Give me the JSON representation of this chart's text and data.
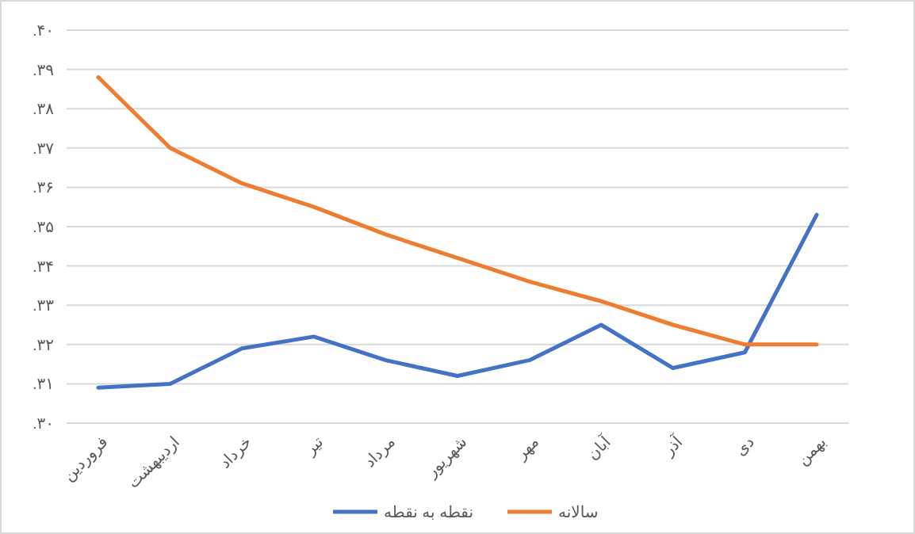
{
  "chart_data": {
    "type": "line",
    "categories": [
      "فروردین",
      "اردیبهشت",
      "خرداد",
      "تیر",
      "مرداد",
      "شهریور",
      "مهر",
      "آبان",
      "آذر",
      "دی",
      "بهمن"
    ],
    "series": [
      {
        "name": "نقطه به نقطه",
        "color": "#4472c4",
        "values": [
          0.309,
          0.31,
          0.319,
          0.322,
          0.316,
          0.312,
          0.316,
          0.325,
          0.314,
          0.318,
          0.353
        ]
      },
      {
        "name": "سالانه",
        "color": "#ed7d31",
        "values": [
          0.388,
          0.37,
          0.361,
          0.355,
          0.348,
          0.342,
          0.336,
          0.331,
          0.325,
          0.32,
          0.32
        ]
      }
    ],
    "ylim": [
      0.3,
      0.4
    ],
    "yticks": [
      {
        "value": 0.3,
        "label": ".۳۰"
      },
      {
        "value": 0.31,
        "label": ".۳۱"
      },
      {
        "value": 0.32,
        "label": ".۳۲"
      },
      {
        "value": 0.33,
        "label": ".۳۳"
      },
      {
        "value": 0.34,
        "label": ".۳۴"
      },
      {
        "value": 0.35,
        "label": ".۳۵"
      },
      {
        "value": 0.36,
        "label": ".۳۶"
      },
      {
        "value": 0.37,
        "label": ".۳۷"
      },
      {
        "value": 0.38,
        "label": ".۳۸"
      },
      {
        "value": 0.39,
        "label": ".۳۹"
      },
      {
        "value": 0.4,
        "label": ".۴۰"
      }
    ],
    "grid": "y",
    "legend": "bottom",
    "marker": "none",
    "line_style": "solid"
  }
}
